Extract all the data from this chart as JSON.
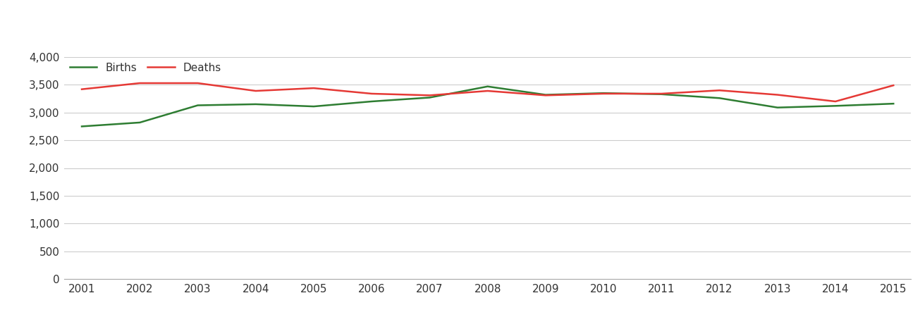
{
  "years": [
    2001,
    2002,
    2003,
    2004,
    2005,
    2006,
    2007,
    2008,
    2009,
    2010,
    2011,
    2012,
    2013,
    2014,
    2015
  ],
  "births": [
    2750,
    2820,
    3130,
    3150,
    3110,
    3200,
    3270,
    3470,
    3320,
    3350,
    3330,
    3260,
    3090,
    3120,
    3160
  ],
  "deaths": [
    3420,
    3530,
    3530,
    3390,
    3440,
    3340,
    3310,
    3390,
    3310,
    3340,
    3340,
    3400,
    3320,
    3200,
    3490
  ],
  "births_color": "#2e7d32",
  "deaths_color": "#e53935",
  "line_width": 1.8,
  "ylim": [
    0,
    4000
  ],
  "yticks": [
    0,
    500,
    1000,
    1500,
    2000,
    2500,
    3000,
    3500,
    4000
  ],
  "legend_labels": [
    "Births",
    "Deaths"
  ],
  "background_color": "#ffffff",
  "grid_color": "#cccccc",
  "tick_label_color": "#333333",
  "tick_fontsize": 11
}
